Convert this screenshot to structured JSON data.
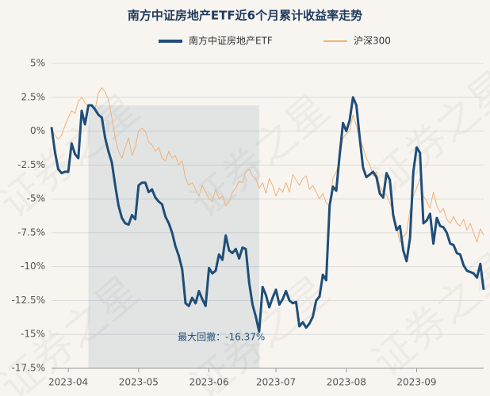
{
  "chart_data": {
    "type": "line",
    "title": "南方中证房地产ETF近6个月累计收益率走势",
    "watermark": "证券之星",
    "annotation": "最大回撤：-16.37%",
    "categories": [
      null,
      null,
      null,
      null,
      null,
      "2023-04",
      null,
      null,
      null,
      null,
      null,
      null,
      null,
      null,
      null,
      null,
      null,
      null,
      null,
      null,
      null,
      null,
      null,
      null,
      null,
      null,
      "2023-05",
      null,
      null,
      null,
      null,
      null,
      null,
      null,
      null,
      null,
      null,
      null,
      null,
      null,
      null,
      null,
      null,
      null,
      null,
      null,
      null,
      "2023-06",
      null,
      null,
      null,
      null,
      null,
      null,
      null,
      null,
      null,
      null,
      null,
      null,
      null,
      null,
      null,
      null,
      null,
      null,
      null,
      "2023-07",
      null,
      null,
      null,
      null,
      null,
      null,
      null,
      null,
      null,
      null,
      null,
      null,
      null,
      null,
      null,
      null,
      null,
      null,
      null,
      null,
      "2023-08",
      null,
      null,
      null,
      null,
      null,
      null,
      null,
      null,
      null,
      null,
      null,
      null,
      null,
      null,
      null,
      null,
      null,
      null,
      null,
      null,
      "2023-09",
      null,
      null,
      null,
      null,
      null,
      null,
      null,
      null,
      null,
      null,
      null,
      null,
      null,
      null,
      null,
      null,
      null,
      null,
      null,
      null
    ],
    "series": [
      {
        "name": "南方中证房地产ETF",
        "color": "#1f4e79",
        "width": 3,
        "values": [
          0.3,
          -1.5,
          -2.8,
          -3.1,
          -3.0,
          -3.0,
          -0.9,
          -1.7,
          -2.0,
          1.5,
          0.5,
          1.9,
          1.9,
          1.6,
          1.2,
          1.0,
          -0.5,
          -1.5,
          -2.3,
          -4.0,
          -5.5,
          -6.4,
          -6.8,
          -6.9,
          -6.2,
          -6.5,
          -4.0,
          -3.8,
          -3.8,
          -4.5,
          -4.3,
          -4.9,
          -5.2,
          -5.4,
          -6.3,
          -6.8,
          -7.5,
          -8.5,
          -9.2,
          -10.2,
          -12.7,
          -12.9,
          -12.3,
          -12.7,
          -11.8,
          -12.4,
          -12.9,
          -10.1,
          -10.5,
          -10.3,
          -9.1,
          -9.5,
          -7.7,
          -8.8,
          -9.0,
          -8.7,
          -9.4,
          -8.6,
          -8.7,
          -11.2,
          -12.8,
          -13.7,
          -14.8,
          -11.5,
          -12.1,
          -13.0,
          -12.3,
          -11.7,
          -12.8,
          -12.4,
          -11.8,
          -12.5,
          -12.7,
          -12.6,
          -14.4,
          -14.1,
          -14.5,
          -14.2,
          -13.7,
          -12.5,
          -12.2,
          -10.6,
          -11.0,
          -5.5,
          -4.1,
          -4.4,
          -1.8,
          0.6,
          0.0,
          0.8,
          2.5,
          1.9,
          -0.5,
          -2.7,
          -3.4,
          -3.2,
          -3.0,
          -3.4,
          -4.6,
          -4.9,
          -3.1,
          -3.6,
          -6.2,
          -7.3,
          -7.0,
          -8.8,
          -9.6,
          -7.9,
          -3.0,
          -1.2,
          -1.6,
          -6.8,
          -6.6,
          -6.1,
          -8.3,
          -6.4,
          -7.0,
          -7.1,
          -7.5,
          -8.3,
          -8.4,
          -9.0,
          -9.1,
          -9.9,
          -10.3,
          -10.4,
          -10.5,
          -10.8,
          -9.8,
          -11.7
        ]
      },
      {
        "name": "沪深300",
        "color": "#f0b27a",
        "width": 1,
        "values": [
          0.2,
          -0.3,
          -0.6,
          -0.3,
          0.4,
          1.0,
          1.5,
          1.3,
          2.2,
          2.5,
          2.1,
          1.8,
          2.0,
          1.6,
          2.8,
          3.2,
          2.9,
          2.3,
          1.0,
          -0.5,
          -1.5,
          -2.0,
          -1.2,
          -0.5,
          -1.8,
          -1.2,
          0.0,
          0.2,
          0.0,
          -0.8,
          -1.0,
          -1.5,
          -1.2,
          -2.0,
          -2.2,
          -1.5,
          -2.0,
          -1.8,
          -2.5,
          -2.2,
          -3.5,
          -4.0,
          -3.8,
          -4.3,
          -4.8,
          -4.0,
          -4.5,
          -5.0,
          -5.2,
          -4.3,
          -5.0,
          -4.8,
          -5.5,
          -5.2,
          -4.5,
          -4.2,
          -3.7,
          -3.8,
          -3.0,
          -2.8,
          -3.3,
          -3.5,
          -4.2,
          -3.8,
          -4.6,
          -3.5,
          -4.0,
          -4.8,
          -4.2,
          -4.5,
          -3.8,
          -4.5,
          -3.2,
          -3.6,
          -4.0,
          -3.5,
          -3.3,
          -4.3,
          -4.0,
          -4.5,
          -5.0,
          -4.6,
          -5.3,
          -5.5,
          -3.5,
          -3.0,
          -2.2,
          -0.5,
          -0.2,
          0.0,
          1.2,
          0.4,
          -0.6,
          -1.2,
          -2.0,
          -2.5,
          -3.3,
          -3.0,
          -4.0,
          -4.5,
          -4.7,
          -5.3,
          -6.0,
          -7.0,
          -8.2,
          -7.8,
          -7.5,
          -5.8,
          -4.8,
          -4.2,
          -3.5,
          -4.8,
          -5.2,
          -5.7,
          -4.5,
          -5.5,
          -6.0,
          -5.7,
          -6.5,
          -6.8,
          -6.3,
          -6.8,
          -7.0,
          -6.5,
          -7.3,
          -6.8,
          -7.5,
          -8.2,
          -7.2,
          -7.7
        ]
      }
    ],
    "ylim": [
      -17.5,
      5
    ],
    "yticks": [
      {
        "value": 5,
        "label": "5%"
      },
      {
        "value": 2.5,
        "label": "2.5%"
      },
      {
        "value": 0,
        "label": "0%"
      },
      {
        "value": -2.5,
        "label": "-2.5%"
      },
      {
        "value": -5,
        "label": "-5%"
      },
      {
        "value": -7.5,
        "label": "-7.5%"
      },
      {
        "value": -10,
        "label": "-10%"
      },
      {
        "value": -12.5,
        "label": "-12.5%"
      },
      {
        "value": -15,
        "label": "-15%"
      },
      {
        "value": -17.5,
        "label": "-17.5%"
      }
    ],
    "grid": true
  }
}
